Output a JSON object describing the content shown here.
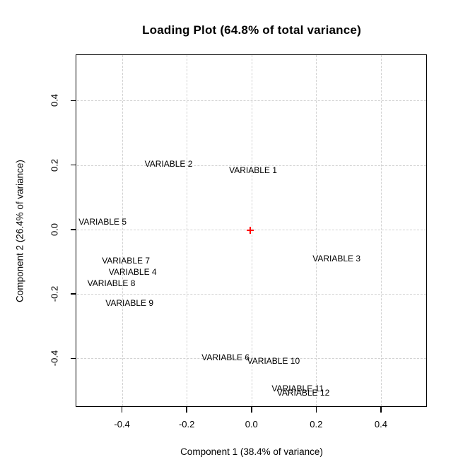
{
  "title": "Loading Plot (64.8% of total variance)",
  "colors": {
    "background": "#ffffff",
    "text": "#000000",
    "plot_border": "#000000",
    "gridline": "#d2d2d2",
    "origin_marker": "#ff0000"
  },
  "chart_data": {
    "type": "scatter",
    "title": "Loading Plot (64.8% of total variance)",
    "xlabel": "Component 1 (38.4% of variance)",
    "ylabel": "Component 2 (26.4% of variance)",
    "xlim": [
      -0.54,
      0.54
    ],
    "ylim": [
      -0.547,
      0.541
    ],
    "xticks": [
      -0.4,
      -0.2,
      0.0,
      0.2,
      0.4
    ],
    "yticks": [
      -0.4,
      -0.2,
      0.0,
      0.2,
      0.4
    ],
    "tick_decimals": 1,
    "grid": "dashed",
    "legend": "none",
    "points_rendered_as": "text-labels-centered-on-point",
    "points": [
      {
        "label": "VARIABLE 1",
        "x": 0.005,
        "y": 0.183
      },
      {
        "label": "VARIABLE 2",
        "x": -0.256,
        "y": 0.204
      },
      {
        "label": "VARIABLE 3",
        "x": 0.263,
        "y": -0.091
      },
      {
        "label": "VARIABLE 4",
        "x": -0.367,
        "y": -0.132
      },
      {
        "label": "VARIABLE 5",
        "x": -0.46,
        "y": 0.023
      },
      {
        "label": "VARIABLE 6",
        "x": -0.08,
        "y": -0.397
      },
      {
        "label": "VARIABLE 7",
        "x": -0.388,
        "y": -0.097
      },
      {
        "label": "VARIABLE 8",
        "x": -0.433,
        "y": -0.167
      },
      {
        "label": "VARIABLE 9",
        "x": -0.377,
        "y": -0.228
      },
      {
        "label": "VARIABLE 10",
        "x": 0.068,
        "y": -0.408
      },
      {
        "label": "VARIABLE 11",
        "x": 0.143,
        "y": -0.494
      },
      {
        "label": "VARIABLE 12",
        "x": 0.16,
        "y": -0.506
      }
    ],
    "origin_marker": {
      "symbol": "+",
      "x": -0.0045,
      "y": -0.0035,
      "color": "#ff0000"
    }
  }
}
